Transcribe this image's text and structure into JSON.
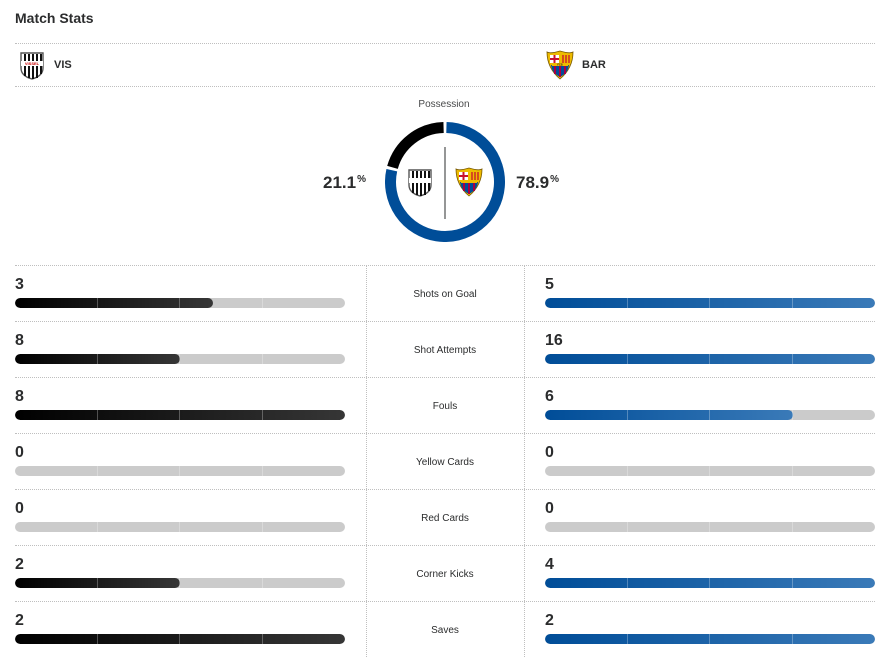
{
  "header": {
    "title": "Match Stats"
  },
  "home": {
    "abbr": "VIS",
    "crest_label": "VISSEL",
    "color": "#000000",
    "possession": "21.1",
    "possession_fraction": 0.211
  },
  "away": {
    "abbr": "BAR",
    "crest_label": "FCB",
    "color": "#004d98",
    "possession": "78.9",
    "possession_fraction": 0.789
  },
  "possession": {
    "label": "Possession",
    "unit": "%"
  },
  "stats": [
    {
      "label": "Shots on Goal",
      "home": "3",
      "away": "5",
      "home_fraction": 0.6,
      "away_fraction": 1.0
    },
    {
      "label": "Shot Attempts",
      "home": "8",
      "away": "16",
      "home_fraction": 0.5,
      "away_fraction": 1.0
    },
    {
      "label": "Fouls",
      "home": "8",
      "away": "6",
      "home_fraction": 1.0,
      "away_fraction": 0.75
    },
    {
      "label": "Yellow Cards",
      "home": "0",
      "away": "0",
      "home_fraction": 0,
      "away_fraction": 0
    },
    {
      "label": "Red Cards",
      "home": "0",
      "away": "0",
      "home_fraction": 0,
      "away_fraction": 0
    },
    {
      "label": "Corner Kicks",
      "home": "2",
      "away": "4",
      "home_fraction": 0.5,
      "away_fraction": 1.0
    },
    {
      "label": "Saves",
      "home": "2",
      "away": "2",
      "home_fraction": 1.0,
      "away_fraction": 1.0
    }
  ]
}
